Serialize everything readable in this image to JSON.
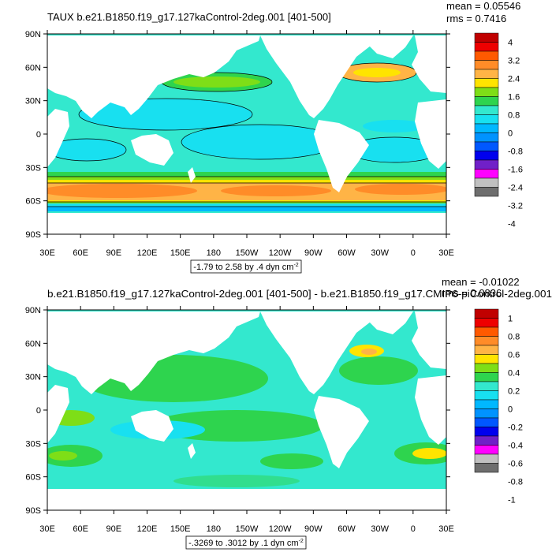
{
  "colors": {
    "ocean_base": "#33e8ce",
    "land": "#ffffff"
  },
  "top_panel": {
    "title": "TAUX b.e21.B1850.f19_g17.127kaControl-2deg.001 [401-500]",
    "mean_label": "mean = 0.05546",
    "rms_label": "rms = 0.7416",
    "contour_info": "-1.79 to 2.58 by .4 dyn cm",
    "contour_unit_exp": "-2",
    "colorbar_labels": [
      "4",
      "3.2",
      "2.4",
      "1.6",
      "0.8",
      "0",
      "-0.8",
      "-1.6",
      "-2.4",
      "-3.2",
      "-4"
    ],
    "colorbar_colors": [
      "#c00000",
      "#ee0000",
      "#ff5a00",
      "#ff8c28",
      "#ffb446",
      "#ffe400",
      "#7ede17",
      "#2ed44e",
      "#33e8ce",
      "#18e0f0",
      "#00b8ff",
      "#0093ff",
      "#0058ff",
      "#0000ee",
      "#7020c8",
      "#ff00ff",
      "#c0c0c0",
      "#6e6e6e"
    ]
  },
  "bottom_panel": {
    "title": "b.e21.B1850.f19_g17.127kaControl-2deg.001 [401-500] - b.e21.B1850.f19_g17.CMIP6-piControl-2deg.001",
    "mean_label": "mean = -0.01022",
    "rms_label": "rms = 0.0836",
    "contour_info": "-.3269 to .3012 by .1 dyn cm",
    "contour_unit_exp": "-2",
    "colorbar_labels": [
      "1",
      "0.8",
      "0.6",
      "0.4",
      "0.2",
      "0",
      "-0.2",
      "-0.4",
      "-0.6",
      "-0.8",
      "-1"
    ],
    "colorbar_colors": [
      "#c00000",
      "#ee0000",
      "#ff5a00",
      "#ff8c28",
      "#ffb446",
      "#ffe400",
      "#7ede17",
      "#2ed44e",
      "#33e8ce",
      "#18e0f0",
      "#00b8ff",
      "#0093ff",
      "#0058ff",
      "#0000ee",
      "#7020c8",
      "#ff00ff",
      "#c0c0c0",
      "#6e6e6e"
    ]
  },
  "axes": {
    "lat_labels": [
      "90N",
      "60N",
      "30N",
      "0",
      "30S",
      "60S",
      "90S"
    ],
    "lon_labels": [
      "30E",
      "60E",
      "90E",
      "120E",
      "150E",
      "180",
      "150W",
      "120W",
      "90W",
      "60W",
      "30W",
      "0",
      "30E"
    ]
  }
}
